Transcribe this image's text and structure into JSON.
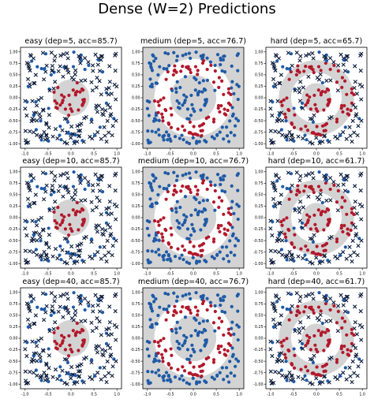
{
  "figure_title": "Dense (W=2) Predictions",
  "colors": {
    "class_a_pred": "#1f5aa6",
    "class_b_pred": "#b2182b",
    "region_fill": "#d3d3d3",
    "cross_marker": "#0a1a3a",
    "axes_frame": "#000000"
  },
  "chart_data": [
    {
      "type": "scatter",
      "title": "easy (dep=5, acc=85.7)",
      "difficulty": "easy",
      "depth": 5,
      "accuracy": 85.7,
      "xlim": [
        -1.1,
        1.1
      ],
      "ylim": [
        -1.1,
        1.1
      ],
      "xticks": [
        "-1.0",
        "-0.5",
        "0.0",
        "0.5",
        "1.0"
      ],
      "yticks": [
        "1.00",
        "0.75",
        "0.50",
        "0.25",
        "0.00",
        "-0.25",
        "-0.50",
        "-0.75",
        "-1.00"
      ],
      "background": "white",
      "region": "disk",
      "region_r": [
        0,
        0.4
      ],
      "outer_marker": "cross",
      "grid": false
    },
    {
      "type": "scatter",
      "title": "medium (dep=5, acc=76.7)",
      "difficulty": "medium",
      "depth": 5,
      "accuracy": 76.7,
      "xlim": [
        -1.1,
        1.1
      ],
      "ylim": [
        -1.1,
        1.1
      ],
      "xticks": [
        "-1.0",
        "-0.5",
        "0.0",
        "0.5",
        "1.0"
      ],
      "yticks": [
        "1.00",
        "0.75",
        "0.50",
        "0.25",
        "0.00",
        "-0.25",
        "-0.50",
        "-0.75",
        "-1.00"
      ],
      "background": "gray",
      "region": "ring",
      "region_r": [
        0.5,
        0.85
      ],
      "outer_marker": "dot",
      "grid": false
    },
    {
      "type": "scatter",
      "title": "hard (dep=5, acc=65.7)",
      "difficulty": "hard",
      "depth": 5,
      "accuracy": 65.7,
      "xlim": [
        -1.1,
        1.1
      ],
      "ylim": [
        -1.1,
        1.1
      ],
      "xticks": [
        "-1.0",
        "-0.5",
        "0.0",
        "0.5",
        "1.0"
      ],
      "yticks": [
        "1.00",
        "0.75",
        "0.50",
        "0.25",
        "0.00",
        "-0.25",
        "-0.50",
        "-0.75",
        "-1.00"
      ],
      "background": "white",
      "region": "double-ring",
      "region_r": [
        0.55,
        0.82,
        0.0,
        0.32
      ],
      "outer_marker": "cross",
      "grid": false
    },
    {
      "type": "scatter",
      "title": "easy (dep=10, acc=85.7)",
      "difficulty": "easy",
      "depth": 10,
      "accuracy": 85.7,
      "xlim": [
        -1.1,
        1.1
      ],
      "ylim": [
        -1.1,
        1.1
      ],
      "xticks": [
        "-1.0",
        "-0.5",
        "0.0",
        "0.5",
        "1.0"
      ],
      "yticks": [
        "1.00",
        "0.75",
        "0.50",
        "0.25",
        "0.00",
        "-0.25",
        "-0.50",
        "-0.75",
        "-1.00"
      ],
      "background": "white",
      "region": "disk",
      "region_r": [
        0,
        0.4
      ],
      "outer_marker": "cross",
      "grid": false
    },
    {
      "type": "scatter",
      "title": "medium (dep=10, acc=76.7)",
      "difficulty": "medium",
      "depth": 10,
      "accuracy": 76.7,
      "xlim": [
        -1.1,
        1.1
      ],
      "ylim": [
        -1.1,
        1.1
      ],
      "xticks": [
        "-1.0",
        "-0.5",
        "0.0",
        "0.5",
        "1.0"
      ],
      "yticks": [
        "1.00",
        "0.75",
        "0.50",
        "0.25",
        "0.00",
        "-0.25",
        "-0.50",
        "-0.75",
        "-1.00"
      ],
      "background": "gray",
      "region": "ring",
      "region_r": [
        0.5,
        0.85
      ],
      "outer_marker": "dot",
      "grid": false
    },
    {
      "type": "scatter",
      "title": "hard (dep=10, acc=61.7)",
      "difficulty": "hard",
      "depth": 10,
      "accuracy": 61.7,
      "xlim": [
        -1.1,
        1.1
      ],
      "ylim": [
        -1.1,
        1.1
      ],
      "xticks": [
        "-1.0",
        "-0.5",
        "0.0",
        "0.5",
        "1.0"
      ],
      "yticks": [
        "1.00",
        "0.75",
        "0.50",
        "0.25",
        "0.00",
        "-0.25",
        "-0.50",
        "-0.75",
        "-1.00"
      ],
      "background": "white",
      "region": "double-ring",
      "region_r": [
        0.55,
        0.82,
        0.0,
        0.32
      ],
      "outer_marker": "cross",
      "grid": false
    },
    {
      "type": "scatter",
      "title": "easy (dep=40, acc=85.7)",
      "difficulty": "easy",
      "depth": 40,
      "accuracy": 85.7,
      "xlim": [
        -1.1,
        1.1
      ],
      "ylim": [
        -1.1,
        1.1
      ],
      "xticks": [
        "-1.0",
        "-0.5",
        "0.0",
        "0.5",
        "1.0"
      ],
      "yticks": [
        "1.00",
        "0.75",
        "0.50",
        "0.25",
        "0.00",
        "-0.25",
        "-0.50",
        "-0.75",
        "-1.00"
      ],
      "background": "white",
      "region": "disk",
      "region_r": [
        0,
        0.4
      ],
      "outer_marker": "cross",
      "grid": false
    },
    {
      "type": "scatter",
      "title": "medium (dep=40, acc=76.7)",
      "difficulty": "medium",
      "depth": 40,
      "accuracy": 76.7,
      "xlim": [
        -1.1,
        1.1
      ],
      "ylim": [
        -1.1,
        1.1
      ],
      "xticks": [
        "-1.0",
        "-0.5",
        "0.0",
        "0.5",
        "1.0"
      ],
      "yticks": [
        "1.00",
        "0.75",
        "0.50",
        "0.25",
        "0.00",
        "-0.25",
        "-0.50",
        "-0.75",
        "-1.00"
      ],
      "background": "gray",
      "region": "ring",
      "region_r": [
        0.5,
        0.85
      ],
      "outer_marker": "dot",
      "grid": false
    },
    {
      "type": "scatter",
      "title": "hard (dep=40, acc=61.7)",
      "difficulty": "hard",
      "depth": 40,
      "accuracy": 61.7,
      "xlim": [
        -1.1,
        1.1
      ],
      "ylim": [
        -1.1,
        1.1
      ],
      "xticks": [
        "-1.0",
        "-0.5",
        "0.0",
        "0.5",
        "1.0"
      ],
      "yticks": [
        "1.00",
        "0.75",
        "0.50",
        "0.25",
        "0.00",
        "-0.25",
        "-0.50",
        "-0.75",
        "-1.00"
      ],
      "background": "white",
      "region": "double-ring",
      "region_r": [
        0.55,
        0.82,
        0.0,
        0.32
      ],
      "outer_marker": "cross",
      "grid": false
    }
  ]
}
